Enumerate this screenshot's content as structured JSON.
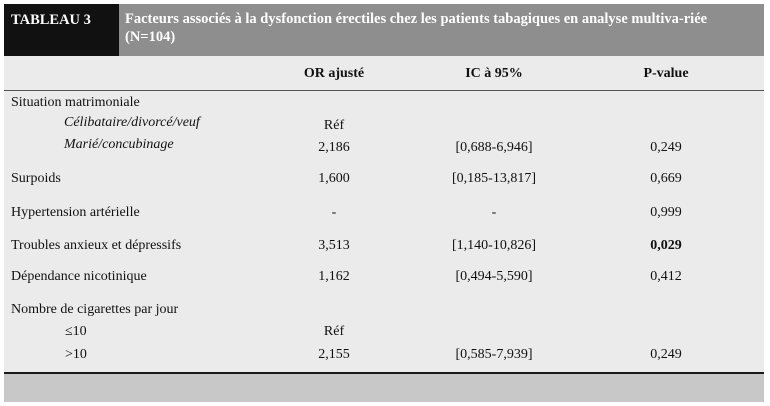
{
  "table": {
    "label": "TABLEAU 3",
    "title": "Facteurs associés à la dysfonction érectiles chez les patients tabagiques en analyse multiva-riée (N=104)",
    "columns": {
      "or": "OR ajusté",
      "ic": "IC à 95%",
      "p": "P-value"
    },
    "rows": {
      "situation": {
        "label": "Situation matrimoniale"
      },
      "celib": {
        "label": "Célibataire/divorcé/veuf",
        "or": "Réf",
        "ic": "",
        "p": ""
      },
      "marie": {
        "label": "Marié/concubinage",
        "or": "2,186",
        "ic": "[0,688-6,946]",
        "p": "0,249"
      },
      "surpoids": {
        "label": "Surpoids",
        "or": "1,600",
        "ic": "[0,185-13,817]",
        "p": "0,669"
      },
      "hta": {
        "label": "Hypertension artérielle",
        "or": "-",
        "ic": "-",
        "p": "0,999"
      },
      "troubles": {
        "label": "Troubles anxieux et dépressifs",
        "or": "3,513",
        "ic": "[1,140-10,826]",
        "p": "0,029"
      },
      "dependance": {
        "label": "Dépendance nicotinique",
        "or": "1,162",
        "ic": "[0,494-5,590]",
        "p": "0,412"
      },
      "cigarettes": {
        "label": "Nombre de cigarettes par jour"
      },
      "le10": {
        "label": "≤10",
        "or": "Réf",
        "ic": "",
        "p": ""
      },
      "gt10": {
        "label": ">10",
        "or": "2,155",
        "ic": "[0,585-7,939]",
        "p": "0,249"
      }
    }
  }
}
